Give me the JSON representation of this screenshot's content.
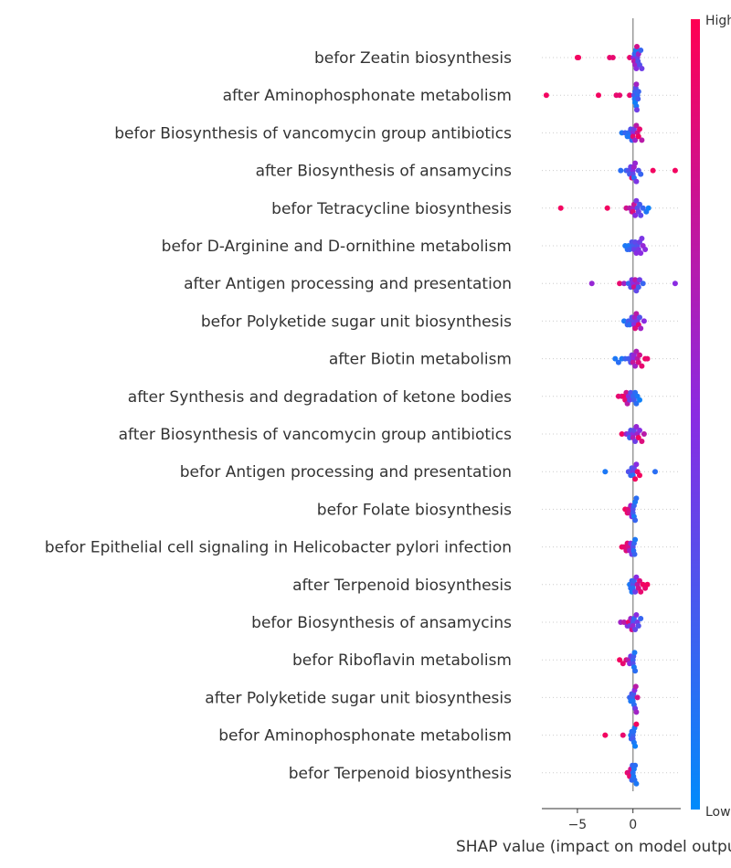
{
  "chart_data": {
    "type": "scatter",
    "subtype": "shap-beeswarm",
    "xlabel": "SHAP value (impact on model output)",
    "x_ticks": [
      -5,
      0
    ],
    "xlim": [
      -8.2,
      4.3
    ],
    "colorbar": {
      "high_label": "High",
      "low_label": "Low",
      "high_color": "#ff0052",
      "mid_color": "#8a2be2",
      "low_color": "#008bfb"
    },
    "grid": false,
    "features": [
      {
        "name": "befor Zeatin biosynthesis",
        "points": [
          [
            -5.0,
            0.95
          ],
          [
            -4.9,
            0.95
          ],
          [
            -2.1,
            0.9
          ],
          [
            -1.8,
            0.9
          ],
          [
            -0.3,
            0.9
          ],
          [
            0.1,
            0.7
          ],
          [
            0.2,
            0.6
          ],
          [
            0.3,
            0.5
          ],
          [
            0.4,
            0.4
          ],
          [
            0.5,
            0.6
          ],
          [
            0.6,
            0.3
          ],
          [
            0.7,
            0.2
          ],
          [
            0.8,
            0.4
          ],
          [
            0.25,
            0.1
          ],
          [
            0.15,
            0.2
          ],
          [
            0.35,
            0.8
          ],
          [
            0.05,
            0.5
          ],
          [
            0.45,
            0.3
          ]
        ]
      },
      {
        "name": "after Aminophosphonate metabolism",
        "points": [
          [
            -7.8,
            0.95
          ],
          [
            -3.1,
            0.95
          ],
          [
            -1.5,
            0.9
          ],
          [
            -1.2,
            0.9
          ],
          [
            -0.3,
            0.9
          ],
          [
            0.1,
            0.3
          ],
          [
            0.2,
            0.2
          ],
          [
            0.3,
            0.1
          ],
          [
            0.4,
            0.15
          ],
          [
            0.5,
            0.2
          ],
          [
            0.25,
            0.3
          ],
          [
            0.15,
            0.1
          ],
          [
            0.35,
            0.4
          ],
          [
            0.45,
            0.25
          ],
          [
            0.2,
            0.05
          ],
          [
            0.3,
            0.6
          ]
        ]
      },
      {
        "name": "befor Biosynthesis of vancomycin group antibiotics",
        "points": [
          [
            -1.0,
            0.1
          ],
          [
            -0.7,
            0.2
          ],
          [
            -0.5,
            0.1
          ],
          [
            -0.4,
            0.15
          ],
          [
            -0.2,
            0.3
          ],
          [
            0.0,
            0.5
          ],
          [
            0.2,
            0.6
          ],
          [
            0.4,
            0.8
          ],
          [
            0.6,
            0.9
          ],
          [
            0.8,
            0.7
          ],
          [
            -0.3,
            0.1
          ],
          [
            -0.1,
            0.2
          ],
          [
            0.1,
            0.4
          ],
          [
            0.3,
            0.7
          ],
          [
            0.5,
            0.95
          ],
          [
            0.0,
            0.9
          ]
        ]
      },
      {
        "name": "after Biosynthesis of ansamycins",
        "points": [
          [
            -1.1,
            0.15
          ],
          [
            -0.6,
            0.2
          ],
          [
            -0.4,
            0.3
          ],
          [
            -0.2,
            0.4
          ],
          [
            0.0,
            0.5
          ],
          [
            0.1,
            0.6
          ],
          [
            0.3,
            0.45
          ],
          [
            0.5,
            0.3
          ],
          [
            0.7,
            0.2
          ],
          [
            1.8,
            0.95
          ],
          [
            3.8,
            0.95
          ],
          [
            -0.3,
            0.25
          ],
          [
            0.0,
            0.35
          ],
          [
            0.2,
            0.55
          ],
          [
            -0.1,
            0.85
          ],
          [
            0.1,
            0.15
          ]
        ]
      },
      {
        "name": "befor Tetracycline biosynthesis",
        "points": [
          [
            -6.5,
            0.95
          ],
          [
            -2.3,
            0.95
          ],
          [
            -0.6,
            0.8
          ],
          [
            -0.3,
            0.7
          ],
          [
            0.0,
            0.6
          ],
          [
            0.2,
            0.5
          ],
          [
            0.4,
            0.3
          ],
          [
            0.6,
            0.25
          ],
          [
            0.9,
            0.2
          ],
          [
            1.2,
            0.1
          ],
          [
            1.4,
            0.05
          ],
          [
            0.1,
            0.75
          ],
          [
            -0.1,
            0.65
          ],
          [
            0.3,
            0.45
          ],
          [
            0.5,
            0.4
          ],
          [
            0.7,
            0.35
          ],
          [
            0.0,
            0.85
          ]
        ]
      },
      {
        "name": "befor D-Arginine and D-ornithine metabolism",
        "points": [
          [
            -0.7,
            0.1
          ],
          [
            -0.5,
            0.15
          ],
          [
            -0.3,
            0.2
          ],
          [
            -0.1,
            0.3
          ],
          [
            0.1,
            0.4
          ],
          [
            0.3,
            0.5
          ],
          [
            0.5,
            0.45
          ],
          [
            0.7,
            0.5
          ],
          [
            0.9,
            0.55
          ],
          [
            1.1,
            0.5
          ],
          [
            -0.4,
            0.1
          ],
          [
            0.0,
            0.25
          ],
          [
            0.2,
            0.35
          ],
          [
            0.4,
            0.3
          ],
          [
            0.6,
            0.4
          ],
          [
            0.8,
            0.45
          ]
        ]
      },
      {
        "name": "after Antigen processing and presentation",
        "points": [
          [
            -3.7,
            0.55
          ],
          [
            -1.2,
            0.9
          ],
          [
            -0.8,
            0.6
          ],
          [
            -0.4,
            0.2
          ],
          [
            -0.2,
            0.3
          ],
          [
            0.0,
            0.5
          ],
          [
            0.2,
            0.7
          ],
          [
            0.4,
            0.6
          ],
          [
            0.6,
            0.4
          ],
          [
            0.9,
            0.2
          ],
          [
            3.8,
            0.5
          ],
          [
            0.1,
            0.8
          ],
          [
            -0.1,
            0.45
          ],
          [
            0.3,
            0.35
          ],
          [
            0.5,
            0.25
          ]
        ]
      },
      {
        "name": "befor Polyketide sugar unit biosynthesis",
        "points": [
          [
            -0.8,
            0.1
          ],
          [
            -0.5,
            0.2
          ],
          [
            -0.3,
            0.15
          ],
          [
            -0.1,
            0.3
          ],
          [
            0.1,
            0.5
          ],
          [
            0.3,
            0.7
          ],
          [
            0.5,
            0.9
          ],
          [
            0.7,
            0.6
          ],
          [
            1.0,
            0.5
          ],
          [
            -0.4,
            0.25
          ],
          [
            0.0,
            0.35
          ],
          [
            0.2,
            0.85
          ],
          [
            0.4,
            0.45
          ],
          [
            0.6,
            0.3
          ],
          [
            0.15,
            0.6
          ]
        ]
      },
      {
        "name": "after Biotin metabolism",
        "points": [
          [
            -1.6,
            0.1
          ],
          [
            -1.3,
            0.15
          ],
          [
            -1.0,
            0.1
          ],
          [
            -0.7,
            0.2
          ],
          [
            -0.4,
            0.25
          ],
          [
            -0.2,
            0.3
          ],
          [
            0.0,
            0.5
          ],
          [
            0.2,
            0.6
          ],
          [
            0.4,
            0.7
          ],
          [
            0.6,
            0.8
          ],
          [
            0.8,
            0.9
          ],
          [
            1.1,
            0.95
          ],
          [
            1.3,
            0.9
          ],
          [
            -0.1,
            0.4
          ],
          [
            0.1,
            0.55
          ],
          [
            0.3,
            0.65
          ],
          [
            0.5,
            0.85
          ],
          [
            0.0,
            0.75
          ]
        ]
      },
      {
        "name": "after Synthesis and degradation of ketone bodies",
        "points": [
          [
            -1.3,
            0.9
          ],
          [
            -1.0,
            0.85
          ],
          [
            -0.8,
            0.95
          ],
          [
            -0.6,
            0.8
          ],
          [
            -0.4,
            0.5
          ],
          [
            -0.2,
            0.3
          ],
          [
            0.0,
            0.2
          ],
          [
            0.2,
            0.15
          ],
          [
            0.4,
            0.1
          ],
          [
            0.6,
            0.05
          ],
          [
            -0.5,
            0.7
          ],
          [
            -0.3,
            0.4
          ],
          [
            0.1,
            0.25
          ],
          [
            0.3,
            0.15
          ],
          [
            -0.7,
            0.9
          ]
        ]
      },
      {
        "name": "after Biosynthesis of vancomycin group antibiotics",
        "points": [
          [
            -1.0,
            0.95
          ],
          [
            -0.6,
            0.6
          ],
          [
            -0.4,
            0.4
          ],
          [
            -0.2,
            0.3
          ],
          [
            0.0,
            0.5
          ],
          [
            0.2,
            0.4
          ],
          [
            0.4,
            0.6
          ],
          [
            0.6,
            0.5
          ],
          [
            0.8,
            0.85
          ],
          [
            1.0,
            0.7
          ],
          [
            -0.3,
            0.2
          ],
          [
            0.1,
            0.35
          ],
          [
            0.3,
            0.55
          ],
          [
            0.5,
            0.95
          ],
          [
            0.0,
            0.65
          ]
        ]
      },
      {
        "name": "befor Antigen processing and presentation",
        "points": [
          [
            -2.5,
            0.1
          ],
          [
            -0.4,
            0.3
          ],
          [
            -0.2,
            0.2
          ],
          [
            0.0,
            0.4
          ],
          [
            0.2,
            0.95
          ],
          [
            0.4,
            0.9
          ],
          [
            0.6,
            0.95
          ],
          [
            2.0,
            0.15
          ],
          [
            -0.1,
            0.25
          ],
          [
            0.1,
            0.35
          ],
          [
            0.3,
            0.5
          ],
          [
            0.0,
            0.15
          ]
        ]
      },
      {
        "name": "befor Folate biosynthesis",
        "points": [
          [
            -0.7,
            0.95
          ],
          [
            -0.5,
            0.9
          ],
          [
            -0.3,
            0.8
          ],
          [
            -0.1,
            0.5
          ],
          [
            0.0,
            0.3
          ],
          [
            0.1,
            0.2
          ],
          [
            0.2,
            0.1
          ],
          [
            0.3,
            0.15
          ],
          [
            -0.2,
            0.6
          ],
          [
            0.0,
            0.25
          ],
          [
            0.1,
            0.1
          ],
          [
            0.2,
            0.2
          ],
          [
            -0.4,
            0.85
          ]
        ]
      },
      {
        "name": "befor Epithelial cell signaling in Helicobacter pylori infection",
        "points": [
          [
            -1.0,
            0.95
          ],
          [
            -0.8,
            0.9
          ],
          [
            -0.6,
            0.85
          ],
          [
            -0.4,
            0.8
          ],
          [
            -0.2,
            0.5
          ],
          [
            0.0,
            0.3
          ],
          [
            0.1,
            0.2
          ],
          [
            0.2,
            0.1
          ],
          [
            -0.3,
            0.6
          ],
          [
            -0.1,
            0.4
          ],
          [
            0.05,
            0.15
          ],
          [
            0.15,
            0.2
          ],
          [
            -0.5,
            0.9
          ]
        ]
      },
      {
        "name": "after Terpenoid biosynthesis",
        "points": [
          [
            -0.3,
            0.1
          ],
          [
            -0.2,
            0.15
          ],
          [
            -0.1,
            0.2
          ],
          [
            0.0,
            0.3
          ],
          [
            0.1,
            0.2
          ],
          [
            0.3,
            0.5
          ],
          [
            0.5,
            0.8
          ],
          [
            0.7,
            0.9
          ],
          [
            0.9,
            0.95
          ],
          [
            1.1,
            0.9
          ],
          [
            1.3,
            0.95
          ],
          [
            0.2,
            0.4
          ],
          [
            0.4,
            0.7
          ],
          [
            0.0,
            0.15
          ],
          [
            -0.1,
            0.1
          ],
          [
            0.6,
            0.85
          ]
        ]
      },
      {
        "name": "befor Biosynthesis of ansamycins",
        "points": [
          [
            -1.1,
            0.6
          ],
          [
            -0.8,
            0.7
          ],
          [
            -0.5,
            0.5
          ],
          [
            -0.3,
            0.4
          ],
          [
            -0.1,
            0.8
          ],
          [
            0.0,
            0.3
          ],
          [
            0.1,
            0.2
          ],
          [
            0.3,
            0.5
          ],
          [
            0.5,
            0.3
          ],
          [
            0.7,
            0.2
          ],
          [
            -0.2,
            0.6
          ],
          [
            0.2,
            0.35
          ],
          [
            0.4,
            0.45
          ],
          [
            -0.4,
            0.9
          ],
          [
            0.0,
            0.55
          ]
        ]
      },
      {
        "name": "befor Riboflavin metabolism",
        "points": [
          [
            -1.2,
            0.95
          ],
          [
            -0.9,
            0.9
          ],
          [
            -0.6,
            0.85
          ],
          [
            -0.4,
            0.7
          ],
          [
            -0.2,
            0.4
          ],
          [
            0.0,
            0.2
          ],
          [
            0.1,
            0.1
          ],
          [
            0.2,
            0.15
          ],
          [
            -0.3,
            0.5
          ],
          [
            0.05,
            0.25
          ],
          [
            0.15,
            0.1
          ],
          [
            0.0,
            0.3
          ]
        ]
      },
      {
        "name": "after Polyketide sugar unit biosynthesis",
        "points": [
          [
            -0.3,
            0.2
          ],
          [
            -0.1,
            0.3
          ],
          [
            0.0,
            0.2
          ],
          [
            0.1,
            0.15
          ],
          [
            0.2,
            0.4
          ],
          [
            0.3,
            0.6
          ],
          [
            0.4,
            0.8
          ],
          [
            -0.2,
            0.1
          ],
          [
            0.05,
            0.25
          ],
          [
            0.15,
            0.5
          ],
          [
            0.25,
            0.7
          ],
          [
            0.0,
            0.1
          ]
        ]
      },
      {
        "name": "befor Aminophosphonate metabolism",
        "points": [
          [
            -2.5,
            0.95
          ],
          [
            -0.9,
            0.9
          ],
          [
            -0.2,
            0.1
          ],
          [
            -0.1,
            0.15
          ],
          [
            0.0,
            0.2
          ],
          [
            0.1,
            0.1
          ],
          [
            0.2,
            0.05
          ],
          [
            0.3,
            0.95
          ],
          [
            -0.15,
            0.2
          ],
          [
            0.05,
            0.15
          ],
          [
            0.15,
            0.1
          ],
          [
            0.0,
            0.25
          ]
        ]
      },
      {
        "name": "befor Terpenoid biosynthesis",
        "points": [
          [
            -0.5,
            0.95
          ],
          [
            -0.3,
            0.9
          ],
          [
            -0.2,
            0.8
          ],
          [
            -0.1,
            0.2
          ],
          [
            0.0,
            0.15
          ],
          [
            0.1,
            0.1
          ],
          [
            0.2,
            0.15
          ],
          [
            0.3,
            0.1
          ],
          [
            -0.05,
            0.2
          ],
          [
            0.05,
            0.1
          ],
          [
            0.15,
            0.15
          ],
          [
            -0.4,
            0.85
          ]
        ]
      }
    ]
  }
}
